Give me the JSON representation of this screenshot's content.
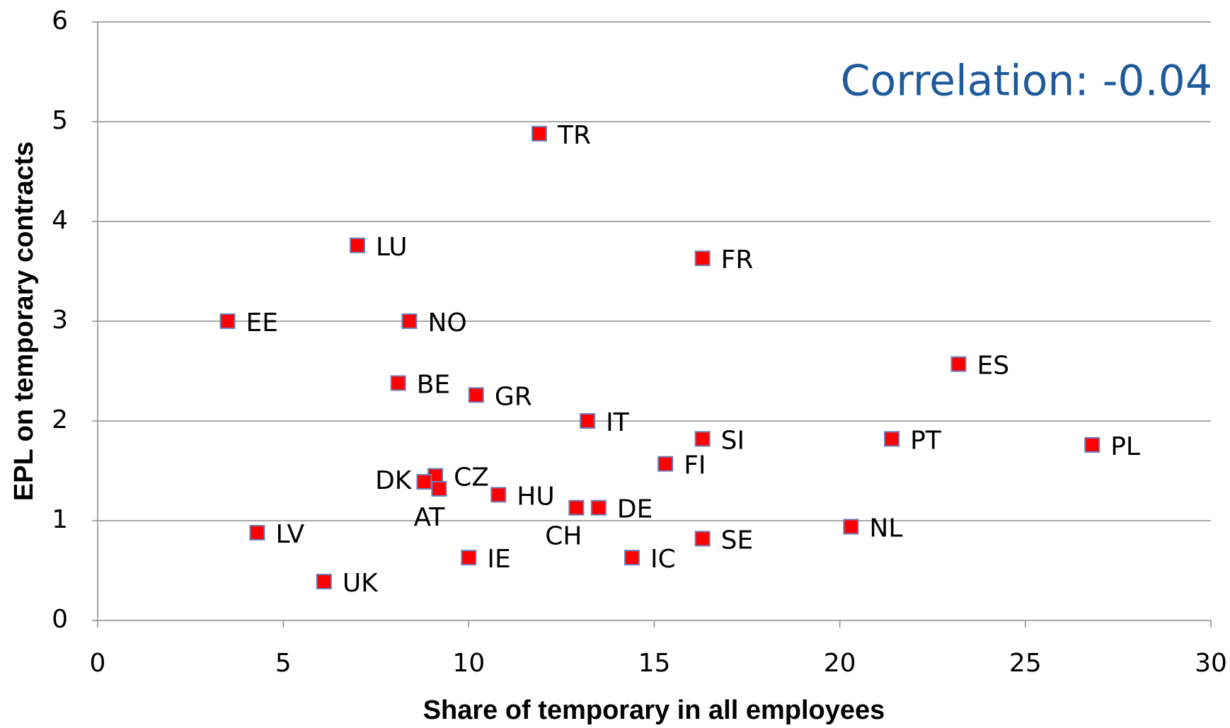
{
  "chart_data": {
    "type": "scatter",
    "annotation": "Correlation: -0.04",
    "x_label": "Share of temporary in all employees",
    "y_label": "EPL on  temporary contracts",
    "labels": [
      "TR",
      "LU",
      "FR",
      "EE",
      "NO",
      "ES",
      "BE",
      "GR",
      "IT",
      "SI",
      "PT",
      "PL",
      "FI",
      "CZ",
      "DK",
      "AT",
      "HU",
      "CH",
      "DE",
      "NL",
      "LV",
      "SE",
      "IE",
      "IC",
      "UK"
    ],
    "x": [
      11.9,
      7.0,
      16.3,
      3.5,
      8.4,
      23.2,
      8.1,
      10.2,
      13.2,
      16.3,
      21.4,
      26.8,
      15.3,
      9.1,
      8.8,
      9.2,
      10.8,
      12.9,
      13.5,
      20.3,
      4.3,
      16.3,
      10.0,
      14.4,
      6.1
    ],
    "values": [
      4.88,
      3.76,
      3.63,
      3.0,
      3.0,
      2.57,
      2.38,
      2.26,
      2.0,
      1.82,
      1.82,
      1.76,
      1.57,
      1.45,
      1.39,
      1.32,
      1.26,
      1.13,
      1.13,
      0.94,
      0.88,
      0.82,
      0.63,
      0.63,
      0.39
    ],
    "color": "#ff0000",
    "xlim": [
      0,
      30
    ],
    "xticks": [
      0,
      5,
      10,
      15,
      20,
      25,
      30
    ],
    "ylim": [
      0,
      6
    ],
    "yticks": [
      0,
      1,
      2,
      3,
      4,
      5,
      6
    ],
    "grid": true
  }
}
